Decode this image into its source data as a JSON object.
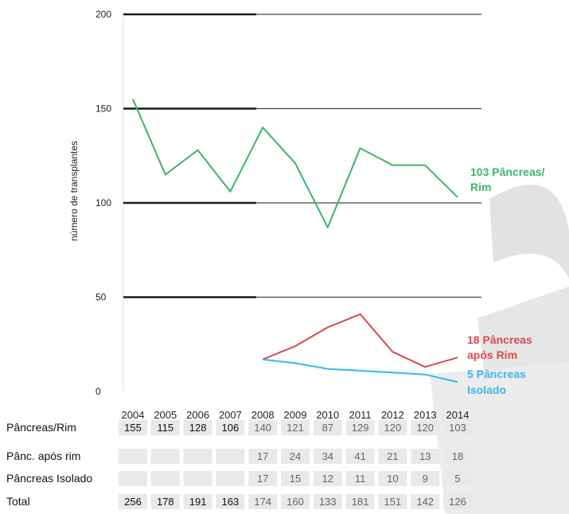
{
  "chart_data": {
    "type": "line",
    "ylabel": "número de transplantes",
    "ylim": [
      0,
      200
    ],
    "yticks": [
      0,
      50,
      100,
      150,
      200
    ],
    "x": [
      "2004",
      "2005",
      "2006",
      "2007",
      "2008",
      "2009",
      "2010",
      "2011",
      "2012",
      "2013",
      "2014"
    ],
    "series": [
      {
        "key": "pr",
        "color": "#3cb36b",
        "label_lines": [
          "103 Pâncreas/",
          "Rim"
        ],
        "values": [
          155,
          115,
          128,
          106,
          140,
          121,
          87,
          129,
          120,
          120,
          103
        ]
      },
      {
        "key": "par",
        "color": "#d94a4f",
        "label_lines": [
          "18 Pâncreas",
          "após Rim"
        ],
        "values": [
          null,
          null,
          null,
          null,
          17,
          24,
          34,
          41,
          21,
          13,
          18
        ]
      },
      {
        "key": "pi",
        "color": "#3ab9e6",
        "label_lines": [
          "5 Pâncreas",
          "Isolado"
        ],
        "values": [
          null,
          null,
          null,
          null,
          17,
          15,
          12,
          11,
          10,
          9,
          5
        ]
      }
    ],
    "table": {
      "rows": [
        {
          "label": "Pâncreas/Rim",
          "values": [
            "155",
            "115",
            "128",
            "106",
            "140",
            "121",
            "87",
            "129",
            "120",
            "120",
            "103"
          ]
        },
        {
          "label": "Pânc. após rim",
          "values": [
            "",
            "",
            "",
            "",
            "17",
            "24",
            "34",
            "41",
            "21",
            "13",
            "18"
          ]
        },
        {
          "label": "Pâncreas Isolado",
          "values": [
            "",
            "",
            "",
            "",
            "17",
            "15",
            "12",
            "11",
            "10",
            "9",
            "5"
          ]
        },
        {
          "label": "Total",
          "values": [
            "256",
            "178",
            "191",
            "163",
            "174",
            "160",
            "133",
            "181",
            "151",
            "142",
            "126"
          ]
        }
      ]
    }
  }
}
